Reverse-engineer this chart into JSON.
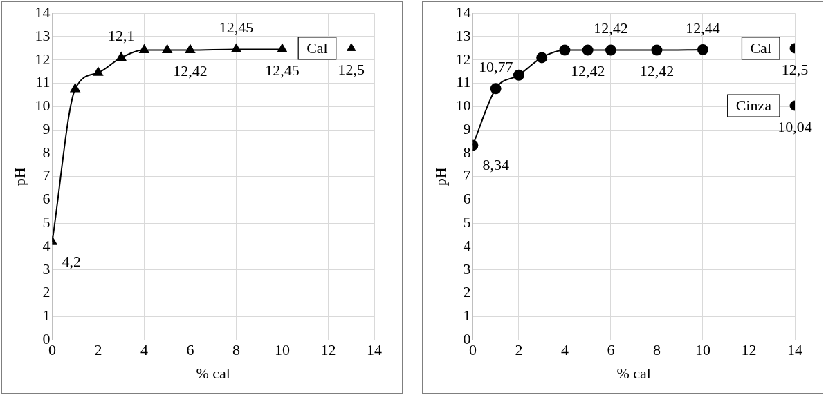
{
  "chart_data": [
    {
      "type": "line",
      "xlabel": "% cal",
      "ylabel": "pH",
      "marker": "triangle",
      "grid": true,
      "xlim": [
        0,
        14
      ],
      "xticks": [
        0,
        2,
        4,
        6,
        8,
        10,
        12,
        14
      ],
      "ylim": [
        0,
        14
      ],
      "yticks": [
        0,
        1,
        2,
        3,
        4,
        5,
        6,
        7,
        8,
        9,
        10,
        11,
        12,
        13,
        14
      ],
      "series": [
        {
          "color": "#000000",
          "x": [
            0,
            1,
            2,
            3,
            4,
            5,
            6,
            8,
            10
          ],
          "values": [
            4.2,
            10.75,
            11.45,
            12.1,
            12.42,
            12.42,
            12.42,
            12.45,
            12.45
          ],
          "value_labels": [
            "4,2",
            null,
            null,
            "12,1",
            null,
            null,
            "12,42",
            "12,45",
            "12,45"
          ]
        },
        {
          "type": "scatter",
          "name": "Cal",
          "color": "#000000",
          "x": [
            13
          ],
          "values": [
            12.5
          ],
          "value_labels": [
            "12,5"
          ]
        }
      ]
    },
    {
      "type": "line",
      "xlabel": "% cal",
      "ylabel": "pH",
      "marker": "circle",
      "grid": true,
      "xlim": [
        0,
        14
      ],
      "xticks": [
        0,
        2,
        4,
        6,
        8,
        10,
        12,
        14
      ],
      "ylim": [
        0,
        14
      ],
      "yticks": [
        0,
        1,
        2,
        3,
        4,
        5,
        6,
        7,
        8,
        9,
        10,
        11,
        12,
        13,
        14
      ],
      "series": [
        {
          "color": "#000000",
          "x": [
            0,
            1,
            2,
            3,
            4,
            5,
            6,
            8,
            10
          ],
          "values": [
            8.34,
            10.77,
            11.35,
            12.1,
            12.42,
            12.42,
            12.42,
            12.42,
            12.44
          ],
          "value_labels": [
            "8,34",
            "10,77",
            null,
            null,
            null,
            "12,42",
            "12,42",
            "12,42",
            "12,44"
          ]
        },
        {
          "type": "scatter",
          "name": "Cal",
          "color": "#000000",
          "x": [
            14
          ],
          "values": [
            12.5
          ],
          "value_labels": [
            "12,5"
          ]
        },
        {
          "type": "scatter",
          "name": "Cinza",
          "color": "#000000",
          "x": [
            14
          ],
          "values": [
            10.04
          ],
          "value_labels": [
            "10,04"
          ]
        }
      ]
    }
  ]
}
